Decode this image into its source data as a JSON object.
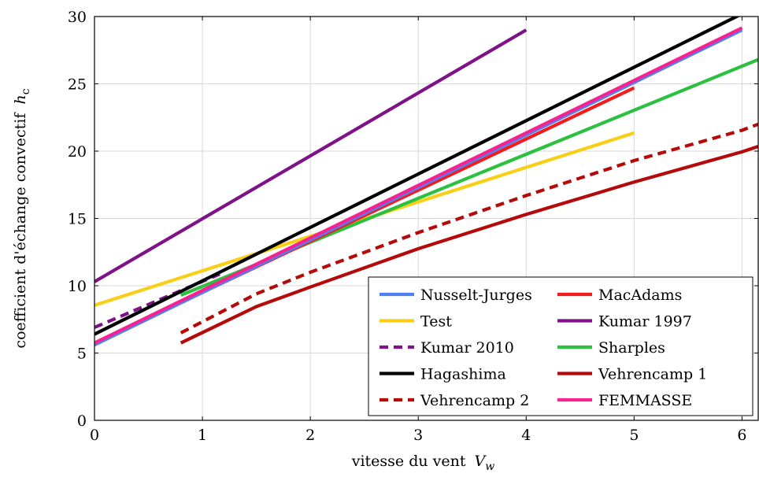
{
  "chart_data": {
    "type": "line",
    "title": "",
    "xlabel": "vitesse du vent",
    "xlabel_var": "V",
    "xlabel_sub": "w",
    "ylabel": "coefficient d'échange convectif",
    "ylabel_var": "h",
    "ylabel_sub": "c",
    "xlim": [
      0,
      6.15
    ],
    "ylim": [
      0,
      30
    ],
    "xticks": [
      "0",
      "1",
      "2",
      "3",
      "4",
      "5",
      "6"
    ],
    "yticks": [
      "0",
      "5",
      "10",
      "15",
      "20",
      "25",
      "30"
    ],
    "grid": true,
    "legend_position": "bottom-right",
    "series": [
      {
        "name": "Nusselt-Jurges",
        "color": "#4f7ff5",
        "dashed": false,
        "x": [
          0,
          6
        ],
        "y": [
          5.6,
          29.0
        ]
      },
      {
        "name": "MacAdams",
        "color": "#f21c1c",
        "dashed": false,
        "x": [
          0,
          5
        ],
        "y": [
          5.7,
          24.7
        ]
      },
      {
        "name": "Test",
        "color": "#f8cf14",
        "dashed": false,
        "x": [
          0,
          5
        ],
        "y": [
          8.55,
          21.35
        ]
      },
      {
        "name": "Kumar 1997",
        "color": "#7d1387",
        "dashed": false,
        "x": [
          0,
          4
        ],
        "y": [
          10.3,
          29.0
        ]
      },
      {
        "name": "Kumar 2010",
        "color": "#7d1387",
        "dashed": true,
        "x": [
          0,
          1.2
        ],
        "y": [
          6.9,
          11.0
        ]
      },
      {
        "name": "Sharples",
        "color": "#2cc040",
        "dashed": false,
        "x": [
          0.8,
          6.15
        ],
        "y": [
          9.3,
          26.8
        ]
      },
      {
        "name": "Hagashima",
        "color": "#000000",
        "dashed": false,
        "x": [
          0,
          6
        ],
        "y": [
          6.4,
          30.2
        ]
      },
      {
        "name": "Vehrencamp 1",
        "color": "#b50a0a",
        "dashed": false,
        "x": [
          0.8,
          1.5,
          2,
          3,
          4,
          5,
          6,
          6.15
        ],
        "y": [
          5.75,
          8.45,
          9.9,
          12.75,
          15.3,
          17.7,
          19.95,
          20.35
        ]
      },
      {
        "name": "Vehrencamp 2",
        "color": "#b50a0a",
        "dashed": true,
        "x": [
          0.8,
          1.5,
          2,
          3,
          4,
          5,
          6,
          6.15
        ],
        "y": [
          6.5,
          9.4,
          11.0,
          13.95,
          16.7,
          19.3,
          21.55,
          22.0
        ]
      },
      {
        "name": "FEMMASSE",
        "color": "#f5228f",
        "dashed": false,
        "x": [
          0,
          6
        ],
        "y": [
          5.75,
          29.15
        ]
      }
    ],
    "legend_columns": [
      [
        "Nusselt-Jurges",
        "Test",
        "Kumar 2010",
        "Hagashima",
        "Vehrencamp 2"
      ],
      [
        "MacAdams",
        "Kumar 1997",
        "Sharples",
        "Vehrencamp 1",
        "FEMMASSE"
      ]
    ]
  }
}
